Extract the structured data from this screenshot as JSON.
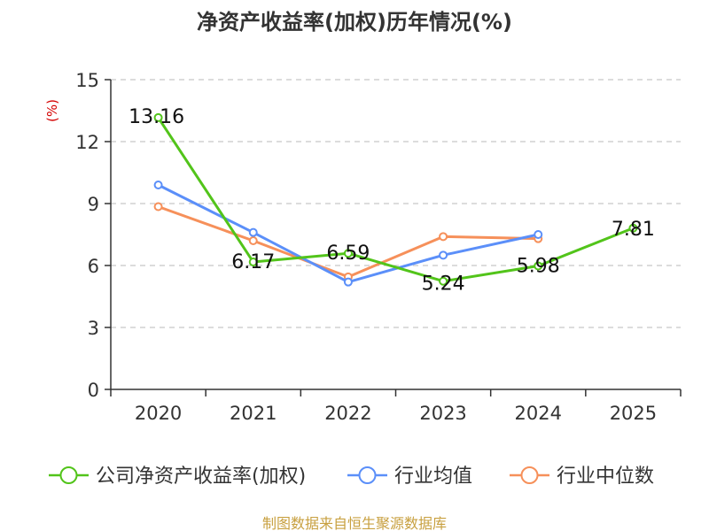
{
  "chart_data": {
    "type": "line",
    "title": "净资产收益率(加权)历年情况(%)",
    "ylabel": "(%)",
    "xlabel": "",
    "categories": [
      "2020",
      "2021",
      "2022",
      "2023",
      "2024",
      "2025"
    ],
    "ylim": [
      0,
      15
    ],
    "yticks": [
      "0",
      "3",
      "6",
      "9",
      "12",
      "15"
    ],
    "grid": true,
    "legend_position": "bottom",
    "series": [
      {
        "name": "公司净资产收益率(加权)",
        "color": "#52c41a",
        "values": [
          13.16,
          6.17,
          6.59,
          5.24,
          5.98,
          7.81
        ],
        "labels": [
          "13.16",
          "6.17",
          "6.59",
          "5.24",
          "5.98",
          "7.81"
        ]
      },
      {
        "name": "行业均值",
        "color": "#5b8ff9",
        "values": [
          9.9,
          7.6,
          5.2,
          6.5,
          7.5,
          null
        ]
      },
      {
        "name": "行业中位数",
        "color": "#f6905a",
        "values": [
          8.85,
          7.2,
          5.45,
          7.4,
          7.3,
          null
        ]
      }
    ],
    "source": "制图数据来自恒生聚源数据库"
  }
}
